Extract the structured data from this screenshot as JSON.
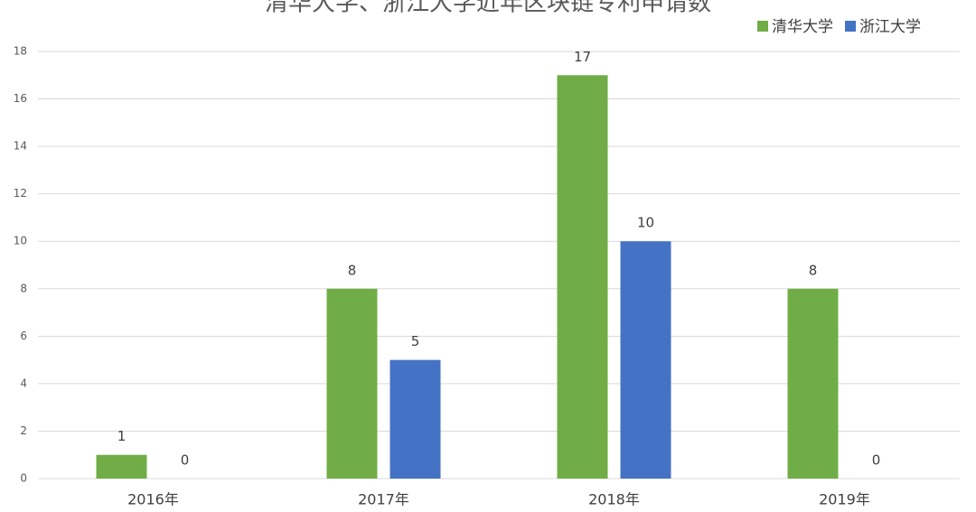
{
  "chart_data": {
    "type": "bar",
    "title": "清华大学、浙江大学近年区块链专利申请数",
    "categories": [
      "2016年",
      "2017年",
      "2018年",
      "2019年"
    ],
    "series": [
      {
        "name": "清华大学",
        "color": "#70ad47",
        "values": [
          1,
          8,
          17,
          8
        ]
      },
      {
        "name": "浙江大学",
        "color": "#4472c4",
        "values": [
          0,
          5,
          10,
          0
        ]
      }
    ],
    "ylim": [
      0,
      18
    ],
    "yticks": [
      0,
      2,
      4,
      6,
      8,
      10,
      12,
      14,
      16,
      18
    ],
    "grid": true,
    "legend": "top-right"
  }
}
